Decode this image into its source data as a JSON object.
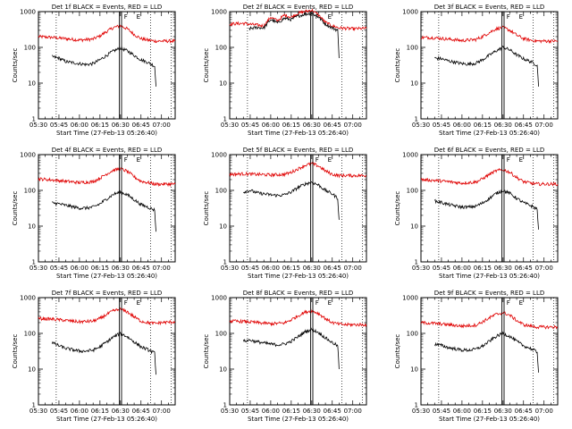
{
  "chart_data": [
    {
      "type": "line",
      "title": "Det 1f BLACK = Events, RED = LLD",
      "xlabel": "Start Time (27-Feb-13 05:26:40)",
      "ylabel": "Counts/sec",
      "x_range": [
        "05:30",
        "07:10"
      ],
      "ylim": [
        1,
        1000
      ],
      "y_scale": "log",
      "xticks": [
        "05:30",
        "05:45",
        "06:00",
        "06:15",
        "06:30",
        "06:45",
        "07:00"
      ],
      "yticks": [
        "1",
        "10",
        "100",
        "1000"
      ],
      "markers": {
        "F": "06:30",
        "E": "06:41"
      },
      "series": [
        {
          "name": "LLD",
          "color": "#e00000",
          "x": [
            "05:30",
            "05:40",
            "05:50",
            "06:00",
            "06:10",
            "06:15",
            "06:20",
            "06:25",
            "06:30",
            "06:35",
            "06:40",
            "06:45",
            "06:50",
            "06:55",
            "07:00",
            "07:10"
          ],
          "values": [
            200,
            190,
            175,
            160,
            170,
            210,
            280,
            360,
            400,
            330,
            230,
            175,
            160,
            150,
            150,
            150
          ]
        },
        {
          "name": "Events",
          "color": "#000000",
          "x": [
            "05:40",
            "05:45",
            "05:50",
            "06:00",
            "06:05",
            "06:10",
            "06:15",
            "06:20",
            "06:25",
            "06:30",
            "06:35",
            "06:40",
            "06:45",
            "06:50",
            "06:55",
            "06:56"
          ],
          "values": [
            55,
            50,
            40,
            35,
            33,
            35,
            45,
            60,
            80,
            95,
            80,
            60,
            45,
            38,
            30,
            8
          ]
        }
      ]
    },
    {
      "type": "line",
      "title": "Det 2f BLACK = Events, RED = LLD",
      "xlabel": "Start Time (27-Feb-13 05:26:40)",
      "ylabel": "Counts/sec",
      "x_range": [
        "05:30",
        "07:10"
      ],
      "ylim": [
        1,
        1000
      ],
      "y_scale": "log",
      "xticks": [
        "05:30",
        "05:45",
        "06:00",
        "06:15",
        "06:30",
        "06:45",
        "07:00"
      ],
      "yticks": [
        "1",
        "10",
        "100",
        "1000"
      ],
      "markers": {
        "F": "06:30",
        "E": "06:41"
      },
      "series": [
        {
          "name": "LLD",
          "color": "#e00000",
          "x": [
            "05:30",
            "05:40",
            "05:50",
            "05:55",
            "06:00",
            "06:05",
            "06:10",
            "06:15",
            "06:20",
            "06:25",
            "06:30",
            "06:35",
            "06:40",
            "06:45",
            "06:50",
            "07:00",
            "07:10"
          ],
          "values": [
            450,
            470,
            420,
            400,
            700,
            550,
            800,
            700,
            900,
            1000,
            1100,
            800,
            500,
            400,
            350,
            330,
            340
          ]
        },
        {
          "name": "Events",
          "color": "#000000",
          "x": [
            "05:44",
            "05:50",
            "05:55",
            "06:00",
            "06:05",
            "06:10",
            "06:15",
            "06:20",
            "06:25",
            "06:30",
            "06:35",
            "06:40",
            "06:45",
            "06:49",
            "06:50"
          ],
          "values": [
            330,
            360,
            350,
            600,
            480,
            650,
            600,
            750,
            850,
            900,
            700,
            450,
            350,
            300,
            50
          ]
        }
      ]
    },
    {
      "type": "line",
      "title": "Det 3f BLACK = Events, RED = LLD",
      "xlabel": "Start Time (27-Feb-13 05:26:40)",
      "ylabel": "Counts/sec",
      "x_range": [
        "05:30",
        "07:10"
      ],
      "ylim": [
        1,
        1000
      ],
      "y_scale": "log",
      "xticks": [
        "05:30",
        "05:45",
        "06:00",
        "06:15",
        "06:30",
        "06:45",
        "07:00"
      ],
      "yticks": [
        "1",
        "10",
        "100",
        "1000"
      ],
      "markers": {
        "F": "06:30",
        "E": "06:41"
      },
      "series": [
        {
          "name": "LLD",
          "color": "#e00000",
          "x": [
            "05:30",
            "05:40",
            "05:50",
            "06:00",
            "06:10",
            "06:15",
            "06:20",
            "06:25",
            "06:30",
            "06:35",
            "06:40",
            "06:45",
            "06:50",
            "06:55",
            "07:00",
            "07:10"
          ],
          "values": [
            190,
            185,
            170,
            155,
            165,
            200,
            260,
            330,
            360,
            300,
            220,
            175,
            160,
            150,
            150,
            150
          ]
        },
        {
          "name": "Events",
          "color": "#000000",
          "x": [
            "05:40",
            "05:45",
            "05:50",
            "06:00",
            "06:05",
            "06:10",
            "06:15",
            "06:20",
            "06:25",
            "06:30",
            "06:35",
            "06:40",
            "06:45",
            "06:50",
            "06:55",
            "06:56"
          ],
          "values": [
            50,
            48,
            42,
            35,
            34,
            36,
            45,
            60,
            80,
            100,
            85,
            62,
            48,
            40,
            32,
            8
          ]
        }
      ]
    },
    {
      "type": "line",
      "title": "Det 4f BLACK = Events, RED = LLD",
      "xlabel": "Start Time (27-Feb-13 05:26:40)",
      "ylabel": "Counts/sec",
      "x_range": [
        "05:30",
        "07:10"
      ],
      "ylim": [
        1,
        1000
      ],
      "y_scale": "log",
      "xticks": [
        "05:30",
        "05:45",
        "06:00",
        "06:15",
        "06:30",
        "06:45",
        "07:00"
      ],
      "yticks": [
        "1",
        "10",
        "100",
        "1000"
      ],
      "markers": {
        "F": "06:30",
        "E": "06:41"
      },
      "series": [
        {
          "name": "LLD",
          "color": "#e00000",
          "x": [
            "05:30",
            "05:40",
            "05:50",
            "06:00",
            "06:10",
            "06:15",
            "06:20",
            "06:25",
            "06:30",
            "06:35",
            "06:40",
            "06:45",
            "06:50",
            "06:55",
            "07:00",
            "07:10"
          ],
          "values": [
            210,
            195,
            180,
            165,
            175,
            220,
            290,
            370,
            400,
            340,
            240,
            180,
            165,
            150,
            150,
            150
          ]
        },
        {
          "name": "Events",
          "color": "#000000",
          "x": [
            "05:40",
            "05:45",
            "05:50",
            "06:00",
            "06:05",
            "06:10",
            "06:15",
            "06:20",
            "06:25",
            "06:30",
            "06:35",
            "06:40",
            "06:45",
            "06:50",
            "06:55",
            "06:56"
          ],
          "values": [
            45,
            42,
            38,
            32,
            32,
            34,
            42,
            58,
            78,
            90,
            75,
            55,
            40,
            34,
            28,
            7
          ]
        }
      ]
    },
    {
      "type": "line",
      "title": "Det 5f BLACK = Events, RED = LLD",
      "xlabel": "Start Time (27-Feb-13 05:26:40)",
      "ylabel": "Counts/sec",
      "x_range": [
        "05:30",
        "07:10"
      ],
      "ylim": [
        1,
        1000
      ],
      "y_scale": "log",
      "xticks": [
        "05:30",
        "05:45",
        "06:00",
        "06:15",
        "06:30",
        "06:45",
        "07:00"
      ],
      "yticks": [
        "1",
        "10",
        "100",
        "1000"
      ],
      "markers": {
        "F": "06:30",
        "E": "06:41"
      },
      "series": [
        {
          "name": "LLD",
          "color": "#e00000",
          "x": [
            "05:30",
            "05:40",
            "05:50",
            "06:00",
            "06:10",
            "06:15",
            "06:20",
            "06:25",
            "06:30",
            "06:35",
            "06:40",
            "06:45",
            "06:50",
            "06:55",
            "07:00",
            "07:10"
          ],
          "values": [
            280,
            290,
            280,
            270,
            280,
            320,
            400,
            500,
            560,
            480,
            350,
            280,
            260,
            260,
            260,
            260
          ]
        },
        {
          "name": "Events",
          "color": "#000000",
          "x": [
            "05:40",
            "05:45",
            "05:50",
            "06:00",
            "06:05",
            "06:10",
            "06:15",
            "06:20",
            "06:25",
            "06:30",
            "06:35",
            "06:40",
            "06:45",
            "06:49",
            "06:50"
          ],
          "values": [
            90,
            100,
            85,
            75,
            72,
            75,
            90,
            120,
            150,
            170,
            140,
            100,
            80,
            60,
            15
          ]
        }
      ]
    },
    {
      "type": "line",
      "title": "Det 6f BLACK = Events, RED = LLD",
      "xlabel": "Start Time (27-Feb-13 05:26:40)",
      "ylabel": "Counts/sec",
      "x_range": [
        "05:30",
        "07:10"
      ],
      "ylim": [
        1,
        1000
      ],
      "y_scale": "log",
      "xticks": [
        "05:30",
        "05:45",
        "06:00",
        "06:15",
        "06:30",
        "06:45",
        "07:00"
      ],
      "yticks": [
        "1",
        "10",
        "100",
        "1000"
      ],
      "markers": {
        "F": "06:30",
        "E": "06:41"
      },
      "series": [
        {
          "name": "LLD",
          "color": "#e00000",
          "x": [
            "05:30",
            "05:40",
            "05:50",
            "06:00",
            "06:10",
            "06:15",
            "06:20",
            "06:25",
            "06:30",
            "06:35",
            "06:40",
            "06:45",
            "06:50",
            "06:55",
            "07:00",
            "07:10"
          ],
          "values": [
            200,
            190,
            175,
            160,
            170,
            210,
            280,
            350,
            380,
            320,
            230,
            175,
            160,
            150,
            150,
            150
          ]
        },
        {
          "name": "Events",
          "color": "#000000",
          "x": [
            "05:40",
            "05:45",
            "05:50",
            "06:00",
            "06:05",
            "06:10",
            "06:15",
            "06:20",
            "06:25",
            "06:30",
            "06:35",
            "06:40",
            "06:45",
            "06:50",
            "06:55",
            "06:56"
          ],
          "values": [
            50,
            46,
            40,
            34,
            34,
            36,
            44,
            60,
            82,
            100,
            82,
            60,
            45,
            38,
            30,
            8
          ]
        }
      ]
    },
    {
      "type": "line",
      "title": "Det 7f BLACK = Events, RED = LLD",
      "xlabel": "Start Time (27-Feb-13 05:26:40)",
      "ylabel": "Counts/sec",
      "x_range": [
        "05:30",
        "07:10"
      ],
      "ylim": [
        1,
        1000
      ],
      "y_scale": "log",
      "xticks": [
        "05:30",
        "05:45",
        "06:00",
        "06:15",
        "06:30",
        "06:45",
        "07:00"
      ],
      "yticks": [
        "1",
        "10",
        "100",
        "1000"
      ],
      "markers": {
        "F": "06:30",
        "E": "06:41"
      },
      "series": [
        {
          "name": "LLD",
          "color": "#e00000",
          "x": [
            "05:30",
            "05:40",
            "05:50",
            "06:00",
            "06:10",
            "06:15",
            "06:20",
            "06:25",
            "06:30",
            "06:35",
            "06:40",
            "06:45",
            "06:50",
            "06:55",
            "07:00",
            "07:10"
          ],
          "values": [
            260,
            250,
            230,
            210,
            220,
            260,
            340,
            430,
            470,
            400,
            290,
            220,
            200,
            190,
            200,
            210
          ]
        },
        {
          "name": "Events",
          "color": "#000000",
          "x": [
            "05:40",
            "05:45",
            "05:50",
            "06:00",
            "06:05",
            "06:10",
            "06:15",
            "06:20",
            "06:25",
            "06:30",
            "06:35",
            "06:40",
            "06:45",
            "06:50",
            "06:55",
            "06:56"
          ],
          "values": [
            55,
            45,
            38,
            32,
            32,
            34,
            42,
            58,
            80,
            100,
            80,
            58,
            42,
            35,
            28,
            7
          ]
        }
      ]
    },
    {
      "type": "line",
      "title": "Det 8f BLACK = Events, RED = LLD",
      "xlabel": "Start Time (27-Feb-13 05:26:40)",
      "ylabel": "Counts/sec",
      "x_range": [
        "05:30",
        "07:10"
      ],
      "ylim": [
        1,
        1000
      ],
      "y_scale": "log",
      "xticks": [
        "05:30",
        "05:45",
        "06:00",
        "06:15",
        "06:30",
        "06:45",
        "07:00"
      ],
      "yticks": [
        "1",
        "10",
        "100",
        "1000"
      ],
      "markers": {
        "F": "06:30",
        "E": "06:41"
      },
      "series": [
        {
          "name": "LLD",
          "color": "#e00000",
          "x": [
            "05:30",
            "05:40",
            "05:50",
            "06:00",
            "06:10",
            "06:15",
            "06:20",
            "06:25",
            "06:30",
            "06:35",
            "06:40",
            "06:45",
            "06:50",
            "06:55",
            "07:00",
            "07:10"
          ],
          "values": [
            220,
            215,
            200,
            185,
            195,
            240,
            310,
            390,
            430,
            360,
            260,
            200,
            180,
            175,
            175,
            175
          ]
        },
        {
          "name": "Events",
          "color": "#000000",
          "x": [
            "05:40",
            "05:45",
            "05:50",
            "06:00",
            "06:05",
            "06:10",
            "06:15",
            "06:20",
            "06:25",
            "06:30",
            "06:35",
            "06:40",
            "06:45",
            "06:49",
            "06:50"
          ],
          "values": [
            60,
            65,
            58,
            50,
            48,
            50,
            60,
            80,
            110,
            130,
            105,
            75,
            55,
            45,
            10
          ]
        }
      ]
    },
    {
      "type": "line",
      "title": "Det 9f BLACK = Events, RED = LLD",
      "xlabel": "Start Time (27-Feb-13 05:26:40)",
      "ylabel": "Counts/sec",
      "x_range": [
        "05:30",
        "07:10"
      ],
      "ylim": [
        1,
        1000
      ],
      "y_scale": "log",
      "xticks": [
        "05:30",
        "05:45",
        "06:00",
        "06:15",
        "06:30",
        "06:45",
        "07:00"
      ],
      "yticks": [
        "1",
        "10",
        "100",
        "1000"
      ],
      "markers": {
        "F": "06:30",
        "E": "06:41"
      },
      "series": [
        {
          "name": "LLD",
          "color": "#e00000",
          "x": [
            "05:30",
            "05:40",
            "05:50",
            "06:00",
            "06:10",
            "06:15",
            "06:20",
            "06:25",
            "06:30",
            "06:35",
            "06:40",
            "06:45",
            "06:50",
            "06:55",
            "07:00",
            "07:10"
          ],
          "values": [
            200,
            190,
            175,
            160,
            170,
            210,
            270,
            340,
            380,
            320,
            230,
            175,
            160,
            150,
            150,
            150
          ]
        },
        {
          "name": "Events",
          "color": "#000000",
          "x": [
            "05:40",
            "05:45",
            "05:50",
            "06:00",
            "06:05",
            "06:10",
            "06:15",
            "06:20",
            "06:25",
            "06:30",
            "06:35",
            "06:40",
            "06:45",
            "06:50",
            "06:55",
            "06:56"
          ],
          "values": [
            50,
            46,
            40,
            34,
            34,
            36,
            44,
            60,
            82,
            100,
            82,
            60,
            45,
            38,
            30,
            8
          ]
        }
      ]
    }
  ]
}
